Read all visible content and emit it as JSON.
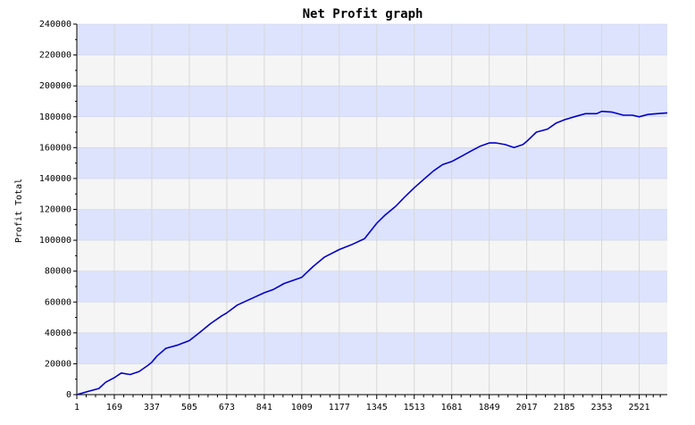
{
  "chart_data": {
    "type": "line",
    "title": "Net Profit graph",
    "xlabel": "",
    "ylabel": "Profit Total",
    "xlim": [
      1,
      2647
    ],
    "ylim": [
      0,
      240000
    ],
    "x_ticks": [
      1,
      169,
      337,
      505,
      673,
      841,
      1009,
      1177,
      1345,
      1513,
      1681,
      1849,
      2017,
      2185,
      2353,
      2521
    ],
    "y_ticks": [
      0,
      20000,
      40000,
      60000,
      80000,
      100000,
      120000,
      140000,
      160000,
      180000,
      200000,
      220000,
      240000
    ],
    "grid": true,
    "band_colors": [
      "#dde3fc",
      "#f5f5f5"
    ],
    "line_color": "#0000cc",
    "series": [
      {
        "x": [
          1,
          50,
          100,
          130,
          169,
          200,
          240,
          280,
          320,
          337,
          360,
          400,
          450,
          505,
          550,
          600,
          650,
          673,
          720,
          780,
          841,
          880,
          930,
          1009,
          1060,
          1110,
          1177,
          1230,
          1290,
          1345,
          1380,
          1430,
          1470,
          1513,
          1560,
          1600,
          1640,
          1681,
          1720,
          1770,
          1810,
          1849,
          1880,
          1920,
          1960,
          2000,
          2017,
          2060,
          2110,
          2150,
          2185,
          2230,
          2280,
          2330,
          2353,
          2400,
          2450,
          2490,
          2521,
          2560,
          2600,
          2647
        ],
        "y": [
          0,
          2000,
          4000,
          8000,
          11000,
          14000,
          13000,
          15000,
          19000,
          21000,
          25000,
          30000,
          32000,
          35000,
          40000,
          46000,
          51000,
          53000,
          58000,
          62000,
          66000,
          68000,
          72000,
          76000,
          83000,
          89000,
          94000,
          97000,
          101000,
          111000,
          116000,
          122000,
          128000,
          134000,
          140000,
          145000,
          149000,
          151000,
          154000,
          158000,
          161000,
          163000,
          163000,
          162000,
          160000,
          162000,
          164000,
          170000,
          172000,
          176000,
          178000,
          180000,
          182000,
          182000,
          183500,
          183000,
          181000,
          181000,
          180000,
          181500,
          182000,
          182500
        ]
      }
    ]
  }
}
